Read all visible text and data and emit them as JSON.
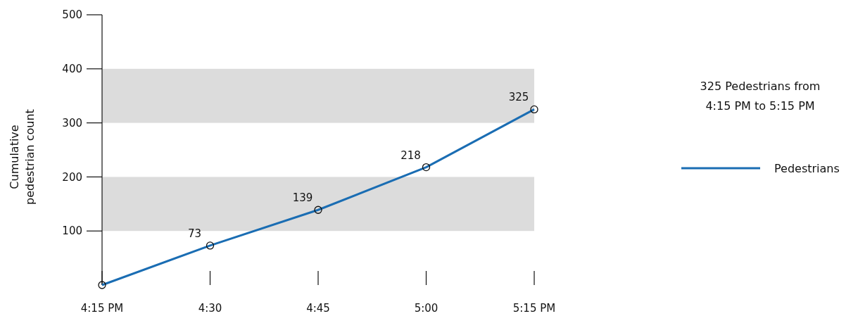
{
  "chart_data": {
    "type": "line",
    "ylabel": "Cumulative pedestrian count",
    "categories": [
      "4:15 PM",
      "4:30",
      "4:45",
      "5:00",
      "5:15 PM"
    ],
    "ylim": [
      0,
      500
    ],
    "yticks": [
      100,
      200,
      300,
      400,
      500
    ],
    "series": [
      {
        "name": "Pedestrians",
        "color": "#1a6db3",
        "values": [
          0,
          73,
          139,
          218,
          325
        ],
        "value_labels": [
          null,
          "73",
          "139",
          "218",
          "325"
        ]
      }
    ],
    "bands": [
      {
        "axis": "y",
        "from": 100,
        "to": 200,
        "color": "#dcdcdc"
      },
      {
        "axis": "y",
        "from": 300,
        "to": 400,
        "color": "#dcdcdc"
      }
    ],
    "annotations": [
      "325 Pedestrians from 4:15 PM to 5:15 PM"
    ],
    "marker": "circle",
    "line_style": "solid",
    "legend": "right",
    "grid": false
  }
}
